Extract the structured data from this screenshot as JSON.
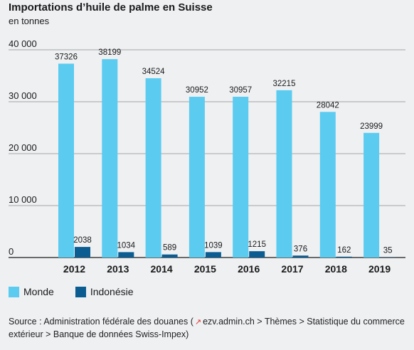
{
  "chart_data": {
    "type": "bar",
    "title": "Importations d’huile de palme en Suisse",
    "ylabel": "en tonnes",
    "xlabel": "",
    "categories": [
      "2012",
      "2013",
      "2014",
      "2015",
      "2016",
      "2017",
      "2018",
      "2019"
    ],
    "series": [
      {
        "name": "Monde",
        "color": "#5bcbf0",
        "values": [
          37326,
          38199,
          34524,
          30952,
          30957,
          32215,
          28042,
          23999
        ]
      },
      {
        "name": "Indonésie",
        "color": "#0b5c91",
        "values": [
          2038,
          1034,
          589,
          1039,
          1215,
          376,
          162,
          35
        ]
      }
    ],
    "value_labels": {
      "Monde": [
        "37326",
        "38199",
        "34524",
        "30952",
        "30957",
        "32215",
        "28042",
        "23999"
      ],
      "Indonésie": [
        "2038",
        "1034",
        "589",
        "1039",
        "1215",
        "376",
        "162",
        "35"
      ]
    },
    "ylim": [
      0,
      40000
    ],
    "yticks": [
      0,
      10000,
      20000,
      30000,
      40000
    ],
    "ytick_labels": [
      "0",
      "10 000",
      "20 000",
      "30 000",
      "40 000"
    ],
    "grid": true,
    "legend": "bottom-left"
  },
  "source": {
    "prefix": "Source : Administration fédérale des douanes (",
    "link_text": "ezv.admin.ch",
    "suffix": " > Thèmes > Statistique du commerce extérieur > Banque de données Swiss-Impex)"
  }
}
